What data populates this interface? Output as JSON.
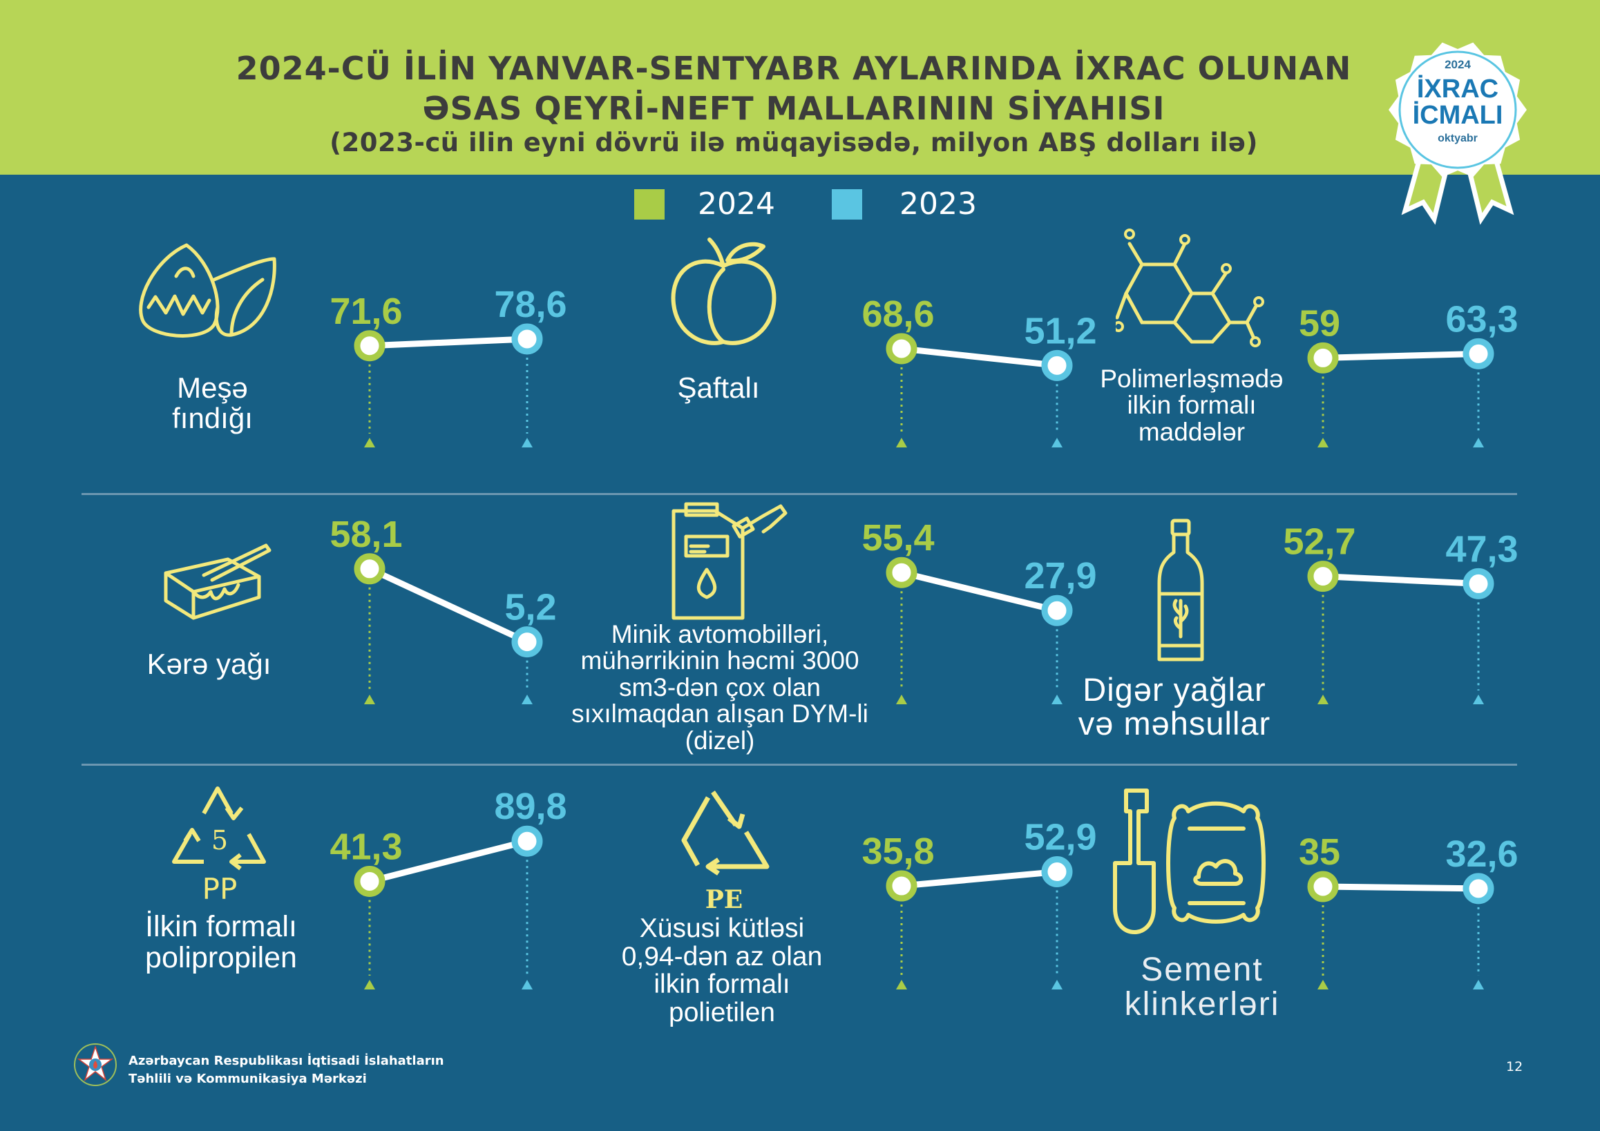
{
  "title_line1": "2024-CÜ İLİN YANVAR-SENTYABR AYLARINDA İXRAC OLUNAN",
  "title_line2": "ƏSAS QEYRİ-NEFT MALLARININ SİYAHISI",
  "title_line3": "(2023-cü ilin eyni dövrü ilə müqayisədə, milyon ABŞ dolları ilə)",
  "badge": {
    "year": "2024",
    "line1": "İXRAC",
    "line2": "İCMALI",
    "month": "oktyabr"
  },
  "legend": [
    {
      "label": "2024",
      "color": "#a9cc47"
    },
    {
      "label": "2023",
      "color": "#5ac5e2"
    }
  ],
  "colors": {
    "series_2024": "#a9cc47",
    "series_2023": "#5ac5e2",
    "background": "#175f85",
    "header": "#b7d556",
    "icon": "#f3e97c"
  },
  "chart_data": {
    "type": "line",
    "series": [
      {
        "name": "2024"
      },
      {
        "name": "2023"
      }
    ],
    "panels": [
      {
        "label": "Meşə fındığı",
        "icon": "hazelnut-icon",
        "value_2024": 71.6,
        "value_2023": 78.6,
        "label_2024": "71,6",
        "label_2023": "78,6"
      },
      {
        "label": "Şaftalı",
        "icon": "peach-icon",
        "value_2024": 68.6,
        "value_2023": 51.2,
        "label_2024": "68,6",
        "label_2023": "51,2"
      },
      {
        "label": "Polimerləşmədə ilkin formalı maddələr",
        "icon": "molecule-icon",
        "value_2024": 59,
        "value_2023": 63.3,
        "label_2024": "59",
        "label_2023": "63,3"
      },
      {
        "label": "Kərə yağı",
        "icon": "butter-icon",
        "value_2024": 58.1,
        "value_2023": 5.2,
        "label_2024": "58,1",
        "label_2023": "5,2"
      },
      {
        "label": "Minik avtomobilləri, mühərrikinin həcmi 3000 sm3-dən çox olan sıxılmaqdan alışan DYM-li (dizel)",
        "icon": "jerrycan-icon",
        "value_2024": 55.4,
        "value_2023": 27.9,
        "label_2024": "55,4",
        "label_2023": "27,9"
      },
      {
        "label": "Digər yağlar və məhsullar",
        "icon": "oil-bottle-icon",
        "value_2024": 52.7,
        "value_2023": 47.3,
        "label_2024": "52,7",
        "label_2023": "47,3"
      },
      {
        "label": "İlkin formalı polipropilen",
        "icon": "pp-recycle-icon",
        "icon_text": "PP",
        "icon_number": "5",
        "value_2024": 41.3,
        "value_2023": 89.8,
        "label_2024": "41,3",
        "label_2023": "89,8"
      },
      {
        "label": "Xüsusi kütləsi 0,94-dən az olan ilkin formalı polietilen",
        "icon": "pe-recycle-icon",
        "icon_text": "PE",
        "value_2024": 35.8,
        "value_2023": 52.9,
        "label_2024": "35,8",
        "label_2023": "52,9"
      },
      {
        "label": "Sement klinkerləri",
        "icon": "cement-bag-icon",
        "value_2024": 35,
        "value_2023": 32.6,
        "label_2024": "35",
        "label_2023": "32,6"
      }
    ]
  },
  "footer": {
    "org_line1": "Azərbaycan Respublikası İqtisadi İslahatların",
    "org_line2": "Təhlili və Kommunikasiya Mərkəzi",
    "page_number": "12"
  }
}
